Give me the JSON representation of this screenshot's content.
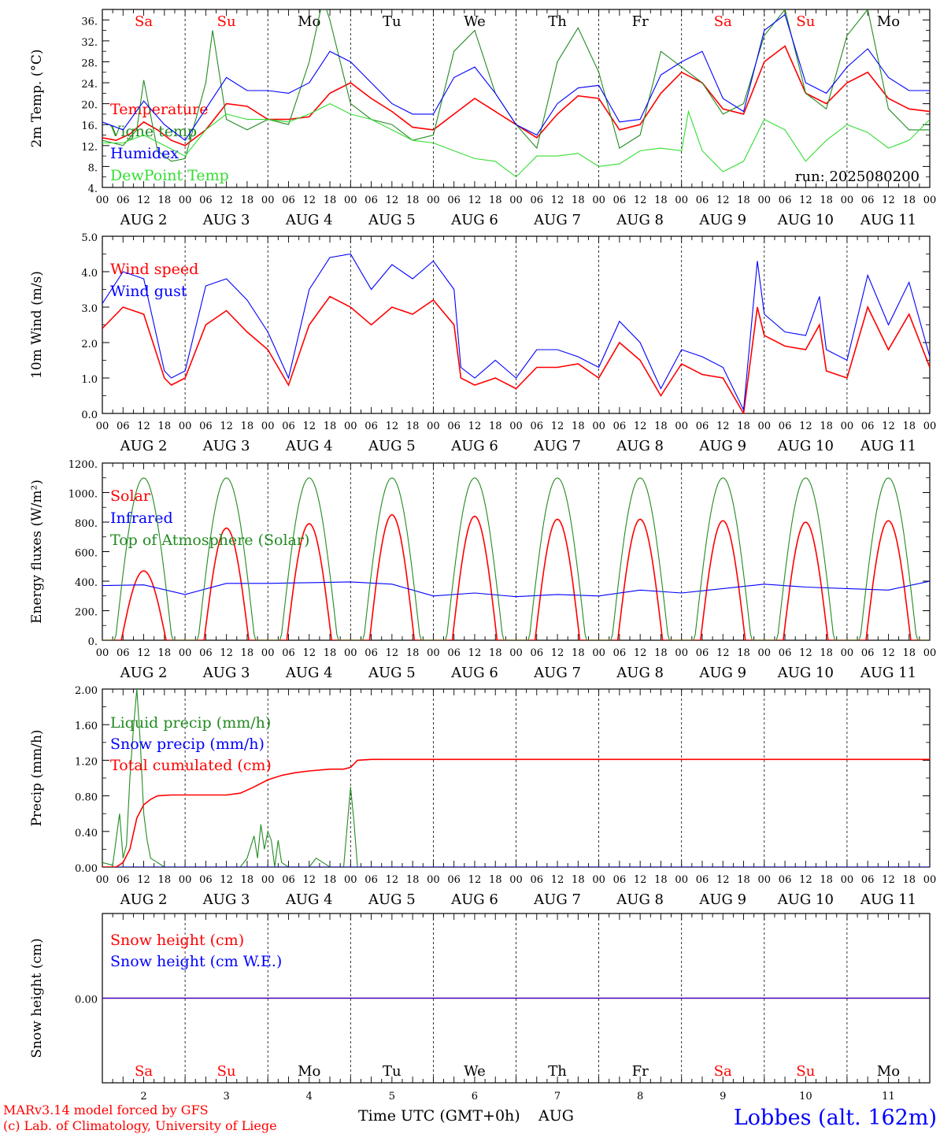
{
  "colors": {
    "red": "#ff0000",
    "blue": "#0000ff",
    "darkgreen": "#228b22",
    "lightgreen": "#33dd33",
    "black": "#000000",
    "weekend": "#ff0000",
    "weekday": "#000000"
  },
  "days": [
    {
      "abbr": "Sa",
      "weekend": true,
      "date": "AUG  2",
      "num": "2"
    },
    {
      "abbr": "Su",
      "weekend": true,
      "date": "AUG  3",
      "num": "3"
    },
    {
      "abbr": "Mo",
      "weekend": false,
      "date": "AUG  4",
      "num": "4"
    },
    {
      "abbr": "Tu",
      "weekend": false,
      "date": "AUG  5",
      "num": "5"
    },
    {
      "abbr": "We",
      "weekend": false,
      "date": "AUG  6",
      "num": "6"
    },
    {
      "abbr": "Th",
      "weekend": false,
      "date": "AUG  7",
      "num": "7"
    },
    {
      "abbr": "Fr",
      "weekend": false,
      "date": "AUG  8",
      "num": "8"
    },
    {
      "abbr": "Sa",
      "weekend": true,
      "date": "AUG  9",
      "num": "9"
    },
    {
      "abbr": "Su",
      "weekend": true,
      "date": "AUG 10",
      "num": "10"
    },
    {
      "abbr": "Mo",
      "weekend": false,
      "date": "AUG 11",
      "num": "11"
    }
  ],
  "hour_ticks": [
    "00",
    "06",
    "12",
    "18"
  ],
  "hour_tick_end": "00",
  "footer": {
    "model": "MARv3.14 model forced by GFS",
    "copyright": "(c) Lab. of Climatology, University of Liege",
    "xlabel": "Time UTC (GMT+0h)",
    "month": "AUG",
    "station": "Lobbes (alt. 162m)"
  },
  "chart_data": [
    {
      "type": "line",
      "ylabel": "2m Temp. (°C)",
      "ylim": [
        4,
        38
      ],
      "yticks": [
        4,
        8,
        12,
        16,
        20,
        24,
        28,
        32,
        36
      ],
      "ytick_labels": [
        "4.",
        "8.",
        "12.",
        "16.",
        "20.",
        "24.",
        "28.",
        "32.",
        "36."
      ],
      "annotation": "run: 2025080200",
      "series": [
        {
          "name": "Temperature",
          "color": "#ff0000",
          "x": [
            0,
            4,
            8,
            12,
            16,
            20,
            24,
            30,
            36,
            42,
            48,
            54,
            60,
            66,
            72,
            78,
            84,
            90,
            96,
            102,
            108,
            114,
            120,
            126,
            132,
            138,
            144,
            150,
            156,
            162,
            168,
            174,
            180,
            186,
            192,
            198,
            204,
            210,
            216,
            222,
            228,
            234,
            240
          ],
          "y": [
            13.5,
            13.0,
            14.2,
            16.5,
            15.0,
            13.0,
            12.0,
            15.0,
            20.0,
            19.5,
            17.0,
            17.0,
            17.5,
            22.0,
            24.0,
            21.0,
            18.5,
            15.5,
            15.0,
            18.0,
            21.0,
            18.5,
            16.0,
            13.5,
            18.0,
            21.5,
            21.0,
            15.0,
            16.0,
            22.0,
            26.0,
            24.0,
            19.0,
            18.0,
            28.0,
            31.0,
            22.0,
            20.0,
            24.0,
            26.0,
            21.0,
            19.0,
            18.5
          ]
        },
        {
          "name": "Vigne temp",
          "color": "#228b22",
          "x": [
            0,
            6,
            10,
            12,
            16,
            20,
            24,
            30,
            32,
            36,
            42,
            48,
            54,
            60,
            64,
            66,
            72,
            78,
            84,
            90,
            96,
            102,
            108,
            114,
            120,
            126,
            132,
            138,
            144,
            150,
            156,
            162,
            168,
            174,
            180,
            186,
            192,
            198,
            204,
            210,
            216,
            222,
            228,
            234,
            240
          ],
          "y": [
            13.0,
            12.0,
            15.0,
            24.5,
            11.0,
            9.0,
            9.5,
            24.0,
            34.0,
            17.0,
            15.0,
            17.0,
            16.0,
            28.0,
            40.0,
            36.0,
            20.0,
            17.0,
            16.0,
            13.0,
            14.0,
            30.0,
            34.0,
            22.0,
            16.0,
            11.5,
            28.0,
            34.5,
            26.0,
            11.5,
            14.0,
            30.0,
            27.0,
            24.0,
            18.0,
            20.0,
            33.0,
            38.0,
            22.0,
            19.0,
            33.0,
            38.0,
            19.0,
            15.0,
            15.0
          ]
        },
        {
          "name": "Humidex",
          "color": "#0000ff",
          "x": [
            0,
            6,
            12,
            18,
            24,
            30,
            36,
            42,
            48,
            54,
            60,
            66,
            72,
            78,
            84,
            90,
            96,
            102,
            108,
            114,
            120,
            126,
            132,
            138,
            144,
            150,
            156,
            162,
            168,
            174,
            180,
            186,
            192,
            198,
            204,
            210,
            216,
            222,
            228,
            234,
            240
          ],
          "y": [
            16.5,
            15.0,
            20.5,
            16.0,
            13.0,
            19.0,
            25.0,
            22.5,
            22.5,
            22.0,
            24.0,
            30.0,
            28.0,
            24.0,
            20.0,
            18.0,
            18.0,
            25.0,
            27.0,
            22.0,
            16.0,
            14.0,
            20.0,
            23.0,
            23.5,
            16.5,
            17.0,
            25.5,
            28.0,
            30.0,
            21.0,
            18.5,
            34.0,
            37.0,
            24.0,
            22.0,
            27.0,
            30.5,
            25.0,
            22.5,
            22.5
          ]
        },
        {
          "name": "DewPoint Temp",
          "color": "#33dd33",
          "x": [
            0,
            6,
            12,
            18,
            24,
            30,
            36,
            42,
            48,
            54,
            60,
            66,
            72,
            78,
            84,
            90,
            96,
            102,
            108,
            114,
            120,
            126,
            132,
            138,
            144,
            150,
            156,
            162,
            168,
            170,
            174,
            180,
            186,
            192,
            198,
            204,
            210,
            216,
            222,
            228,
            234,
            240
          ],
          "y": [
            12.5,
            12.5,
            14.0,
            12.0,
            10.0,
            15.0,
            18.0,
            17.0,
            17.0,
            16.5,
            18.0,
            20.0,
            18.0,
            17.0,
            15.0,
            13.0,
            12.5,
            11.0,
            9.5,
            9.0,
            6.0,
            10.0,
            10.0,
            10.5,
            8.0,
            8.5,
            11.0,
            11.5,
            11.0,
            18.5,
            11.0,
            7.0,
            9.0,
            17.0,
            15.0,
            9.0,
            13.0,
            16.0,
            14.5,
            11.5,
            13.0,
            17.0
          ]
        }
      ]
    },
    {
      "type": "line",
      "ylabel": "10m Wind (m/s)",
      "ylim": [
        0,
        5
      ],
      "yticks": [
        0,
        1,
        2,
        3,
        4,
        5
      ],
      "ytick_labels": [
        "0.0",
        "1.0",
        "2.0",
        "3.0",
        "4.0",
        "5.0"
      ],
      "series": [
        {
          "name": "Wind speed",
          "color": "#ff0000",
          "x": [
            0,
            6,
            12,
            18,
            20,
            24,
            30,
            36,
            42,
            48,
            54,
            60,
            66,
            72,
            78,
            84,
            90,
            96,
            102,
            104,
            108,
            114,
            120,
            126,
            132,
            138,
            144,
            150,
            156,
            162,
            168,
            174,
            180,
            186,
            190,
            192,
            198,
            204,
            208,
            210,
            216,
            222,
            228,
            234,
            240
          ],
          "y": [
            2.4,
            3.0,
            2.8,
            1.0,
            0.8,
            1.0,
            2.5,
            2.9,
            2.3,
            1.8,
            0.8,
            2.5,
            3.3,
            3.0,
            2.5,
            3.0,
            2.8,
            3.2,
            2.5,
            1.0,
            0.8,
            1.0,
            0.7,
            1.3,
            1.3,
            1.4,
            1.0,
            2.0,
            1.5,
            0.5,
            1.4,
            1.1,
            1.0,
            0.0,
            3.0,
            2.2,
            1.9,
            1.8,
            2.5,
            1.2,
            1.0,
            3.0,
            1.8,
            2.8,
            1.3
          ]
        },
        {
          "name": "Wind gust",
          "color": "#0000ff",
          "x": [
            0,
            6,
            12,
            18,
            20,
            24,
            30,
            36,
            42,
            48,
            54,
            60,
            66,
            72,
            78,
            84,
            90,
            96,
            102,
            104,
            108,
            114,
            120,
            126,
            132,
            138,
            144,
            150,
            156,
            162,
            168,
            174,
            180,
            186,
            190,
            192,
            198,
            204,
            208,
            210,
            216,
            222,
            228,
            234,
            240
          ],
          "y": [
            3.1,
            4.0,
            3.8,
            1.2,
            1.0,
            1.2,
            3.6,
            3.8,
            3.2,
            2.3,
            1.0,
            3.5,
            4.4,
            4.5,
            3.5,
            4.2,
            3.8,
            4.3,
            3.5,
            1.3,
            1.0,
            1.5,
            1.0,
            1.8,
            1.8,
            1.6,
            1.3,
            2.6,
            2.0,
            0.7,
            1.8,
            1.6,
            1.3,
            0.1,
            4.3,
            2.8,
            2.3,
            2.2,
            3.3,
            1.8,
            1.5,
            3.9,
            2.5,
            3.7,
            1.6
          ]
        }
      ]
    },
    {
      "type": "line",
      "ylabel": "Energy fluxes (W/m²)",
      "ylim": [
        0,
        1200
      ],
      "yticks": [
        0,
        200,
        400,
        600,
        800,
        1000,
        1200
      ],
      "ytick_labels": [
        "0.",
        "200.",
        "400.",
        "600.",
        "800.",
        "1000.",
        "1200."
      ],
      "series": [
        {
          "name": "Solar",
          "color": "#ff0000",
          "daily_peaks": [
            470,
            760,
            790,
            850,
            840,
            820,
            820,
            810,
            800,
            810
          ]
        },
        {
          "name": "Infrared",
          "color": "#0000ff",
          "x": [
            0,
            12,
            24,
            36,
            48,
            60,
            72,
            84,
            96,
            108,
            120,
            132,
            144,
            156,
            168,
            180,
            192,
            204,
            216,
            228,
            240
          ],
          "y": [
            370,
            375,
            310,
            385,
            385,
            390,
            395,
            380,
            300,
            320,
            295,
            310,
            300,
            340,
            320,
            350,
            380,
            360,
            350,
            340,
            400
          ]
        },
        {
          "name": "Top of Atmosphere (Solar)",
          "color": "#228b22",
          "daily_peak": 1100
        }
      ]
    },
    {
      "type": "line",
      "ylabel": "Precip (mm/h)",
      "ylim": [
        0,
        2
      ],
      "yticks": [
        0,
        0.4,
        0.8,
        1.2,
        1.6,
        2.0
      ],
      "ytick_labels": [
        "0.00",
        "0.40",
        "0.80",
        "1.20",
        "1.60",
        "2.00"
      ],
      "series": [
        {
          "name": "Liquid precip (mm/h)",
          "color": "#228b22",
          "x": [
            0,
            3,
            5,
            6,
            7,
            8,
            9,
            10,
            11,
            12,
            13,
            14,
            16,
            18,
            20,
            40,
            42,
            44,
            45,
            46,
            47,
            48,
            49,
            50,
            51,
            52,
            54,
            60,
            62,
            64,
            66,
            70,
            72,
            73,
            74,
            75,
            76,
            78,
            240
          ],
          "y": [
            0.05,
            0.02,
            0.6,
            0.1,
            0.25,
            1.0,
            1.55,
            2.0,
            1.4,
            0.6,
            0.3,
            0.1,
            0.05,
            0.0,
            0.0,
            0.0,
            0.1,
            0.35,
            0.1,
            0.48,
            0.2,
            0.4,
            0.3,
            0.0,
            0.3,
            0.05,
            0.0,
            0.0,
            0.1,
            0.05,
            0.0,
            0.0,
            0.9,
            0.5,
            0.0,
            0.0,
            0.0,
            0.0,
            0.0
          ]
        },
        {
          "name": "Snow precip (mm/h)",
          "color": "#0000ff",
          "x": [
            0,
            240
          ],
          "y": [
            0,
            0
          ]
        },
        {
          "name": "Total cumulated (cm)",
          "color": "#ff0000",
          "x": [
            0,
            4,
            6,
            8,
            10,
            12,
            14,
            16,
            20,
            24,
            36,
            40,
            44,
            48,
            52,
            56,
            60,
            66,
            70,
            72,
            74,
            78,
            240
          ],
          "y": [
            0.0,
            0.0,
            0.05,
            0.2,
            0.55,
            0.7,
            0.76,
            0.8,
            0.81,
            0.81,
            0.81,
            0.83,
            0.9,
            0.98,
            1.03,
            1.06,
            1.08,
            1.1,
            1.1,
            1.12,
            1.2,
            1.21,
            1.21
          ]
        }
      ]
    },
    {
      "type": "line",
      "ylabel": "Snow height (cm)",
      "ylim": [
        -1,
        1
      ],
      "yticks": [
        0
      ],
      "ytick_labels": [
        "0.00"
      ],
      "series": [
        {
          "name": "Snow height (cm)",
          "color": "#ff0000",
          "x": [
            0,
            240
          ],
          "y": [
            0,
            0
          ]
        },
        {
          "name": "Snow height (cm W.E.)",
          "color": "#0000ff",
          "x": [
            0,
            240
          ],
          "y": [
            0,
            0
          ]
        }
      ]
    }
  ]
}
